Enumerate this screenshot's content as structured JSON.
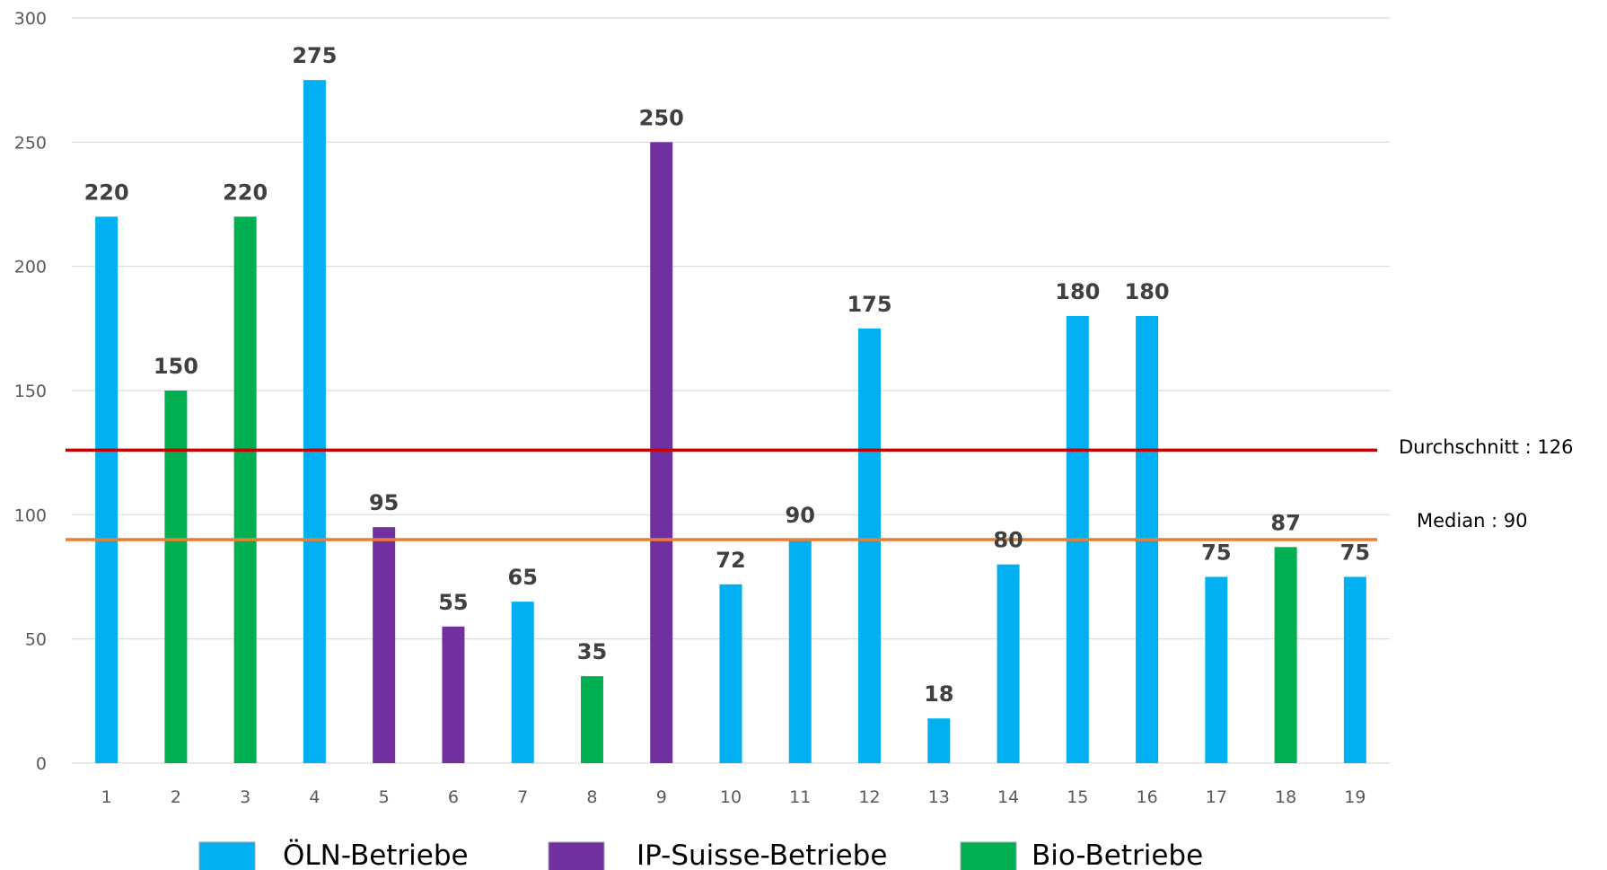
{
  "chart_data": {
    "type": "bar",
    "title": "",
    "xlabel": "",
    "ylabel": "",
    "ylim": [
      0,
      300
    ],
    "y_ticks": [
      0,
      50,
      100,
      150,
      200,
      250,
      300
    ],
    "grid": true,
    "legend_position": "bottom",
    "categories": [
      "1",
      "2",
      "3",
      "4",
      "5",
      "6",
      "7",
      "8",
      "9",
      "10",
      "11",
      "12",
      "13",
      "14",
      "15",
      "16",
      "17",
      "18",
      "19"
    ],
    "values": [
      220,
      150,
      220,
      275,
      95,
      55,
      65,
      35,
      250,
      72,
      90,
      175,
      18,
      80,
      180,
      180,
      75,
      87,
      75
    ],
    "value_labels": [
      "220",
      "150",
      "220",
      "275",
      "95",
      "55",
      "65",
      "35",
      "250",
      "72",
      "90",
      "175",
      "18",
      "80",
      "180",
      "180",
      "75",
      "87",
      "75"
    ],
    "groups": [
      "oln",
      "bio",
      "bio",
      "oln",
      "ip",
      "ip",
      "oln",
      "bio",
      "ip",
      "oln",
      "oln",
      "oln",
      "oln",
      "oln",
      "oln",
      "oln",
      "oln",
      "bio",
      "oln"
    ],
    "series": [
      {
        "key": "oln",
        "name": "ÖLN-Betriebe",
        "color": "#00b0f0"
      },
      {
        "key": "ip",
        "name": "IP-Suisse-Betriebe",
        "color": "#7030a0"
      },
      {
        "key": "bio",
        "name": "Bio-Betriebe",
        "color": "#00b050"
      }
    ],
    "reference_lines": [
      {
        "name": "Durchschnitt",
        "label": "Durchschnitt : 126",
        "value": 126,
        "color": "#c00000"
      },
      {
        "name": "Median",
        "label": "Median : 90",
        "value": 90,
        "color": "#ed7d31"
      }
    ]
  }
}
